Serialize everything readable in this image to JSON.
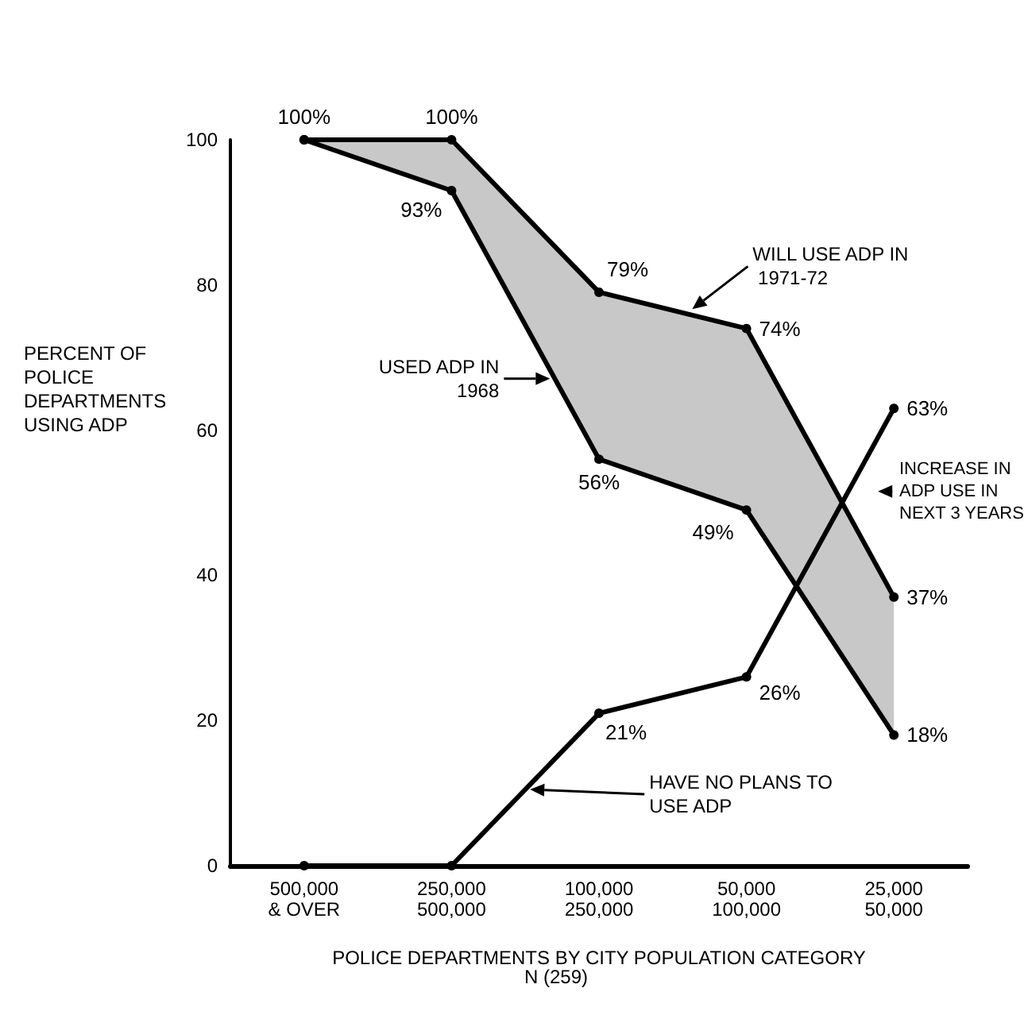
{
  "chart_data": {
    "type": "line",
    "subtitle": "N (259)",
    "xlabel": "POLICE DEPARTMENTS BY CITY POPULATION CATEGORY",
    "ylabel": "PERCENT OF POLICE DEPARTMENTS USING ADP",
    "categories": [
      "500,000\n& OVER",
      "250,000\n500,000",
      "100,000\n250,000",
      "50,000\n100,000",
      "25,000\n50,000"
    ],
    "series": [
      {
        "color": "#000000",
        "values": [
          100,
          100,
          79,
          74,
          37
        ],
        "value_labels": [
          "100%",
          "100%",
          "79%",
          "74%",
          "37%"
        ],
        "lower": [
          100,
          93,
          56,
          49,
          18
        ],
        "upper": [
          100,
          100,
          79,
          74,
          37
        ]
      },
      {
        "color": "#000000",
        "values": [
          100,
          93,
          56,
          49,
          18
        ],
        "value_labels": [
          null,
          "93%",
          "56%",
          "49%",
          "18%"
        ]
      },
      {
        "color": "#000000",
        "values": [
          0,
          0,
          21,
          26,
          63
        ],
        "value_labels": [
          null,
          null,
          "21%",
          "26%",
          "63%"
        ]
      }
    ],
    "annotations": [
      "WILL USE ADP IN 1971-72",
      "USED ADP IN 1968",
      "HAVE NO PLANS TO USE ADP",
      "INCREASE IN ADP USE IN NEXT 3 YEARS"
    ],
    "ylim": [
      0,
      100
    ],
    "yticks": [
      0,
      20,
      40,
      60,
      80,
      100
    ],
    "grid": false,
    "marker": "circle",
    "line_style": "solid"
  }
}
